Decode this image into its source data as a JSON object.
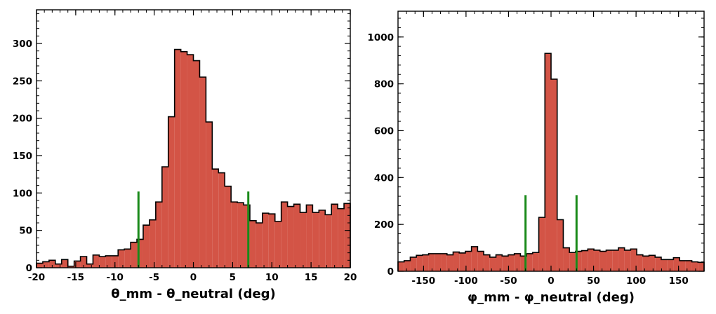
{
  "colors": {
    "bar_fill": "#d35446",
    "bar_edge": "#000000",
    "cut_line": "#1a8a1a",
    "background": "#ffffff"
  },
  "chart_data": [
    {
      "type": "histogram",
      "xlabel": "θ_mm - θ_neutral (deg)",
      "ylabel": "",
      "xlim": [
        -20,
        20
      ],
      "ylim": [
        0,
        345
      ],
      "x_ticks": [
        -20,
        -15,
        -10,
        -5,
        0,
        5,
        10,
        15,
        20
      ],
      "y_ticks": [
        0,
        50,
        100,
        150,
        200,
        250,
        300
      ],
      "grid": false,
      "bin_edges": [
        -20,
        -19.2,
        -18.4,
        -17.6,
        -16.8,
        -16,
        -15.2,
        -14.4,
        -13.6,
        -12.8,
        -12,
        -11.2,
        -10.4,
        -9.6,
        -8.8,
        -8,
        -7.2,
        -6.4,
        -5.6,
        -4.8,
        -4,
        -3.2,
        -2.4,
        -1.6,
        -0.8,
        0,
        0.8,
        1.6,
        2.4,
        3.2,
        4,
        4.8,
        5.6,
        6.4,
        7.2,
        8,
        8.8,
        9.6,
        10.4,
        11.2,
        12,
        12.8,
        13.6,
        14.4,
        15.2,
        16,
        16.8,
        17.6,
        18.4,
        19.2,
        20
      ],
      "counts": [
        6,
        8,
        10,
        5,
        11,
        2,
        9,
        15,
        5,
        17,
        15,
        16,
        16,
        24,
        25,
        34,
        38,
        57,
        64,
        88,
        135,
        202,
        292,
        289,
        285,
        277,
        255,
        195,
        132,
        127,
        109,
        88,
        87,
        84,
        63,
        60,
        73,
        72,
        62,
        88,
        82,
        85,
        74,
        84,
        74,
        77,
        71,
        85,
        79,
        86
      ],
      "cut_lines": [
        -7,
        7
      ],
      "cut_line_height": 102
    },
    {
      "type": "histogram",
      "xlabel": "φ_mm - φ_neutral (deg)",
      "ylabel": "",
      "xlim": [
        -180,
        180
      ],
      "ylim": [
        0,
        1110
      ],
      "x_ticks": [
        -150,
        -100,
        -50,
        0,
        50,
        100,
        150
      ],
      "y_ticks": [
        0,
        200,
        400,
        600,
        800,
        1000
      ],
      "grid": false,
      "bin_edges": [
        -180,
        -172.8,
        -165.6,
        -158.4,
        -151.2,
        -144,
        -136.8,
        -129.6,
        -122.4,
        -115.2,
        -108,
        -100.8,
        -93.6,
        -86.4,
        -79.2,
        -72,
        -64.8,
        -57.6,
        -50.4,
        -43.2,
        -36,
        -28.8,
        -21.6,
        -14.4,
        -7.2,
        0,
        7.2,
        14.4,
        21.6,
        28.8,
        36,
        43.2,
        50.4,
        57.6,
        64.8,
        72,
        79.2,
        86.4,
        93.6,
        100.8,
        108,
        115.2,
        122.4,
        129.6,
        136.8,
        144,
        151.2,
        158.4,
        165.6,
        172.8,
        180
      ],
      "counts": [
        40,
        45,
        60,
        68,
        70,
        75,
        75,
        75,
        70,
        82,
        78,
        85,
        105,
        85,
        70,
        60,
        70,
        65,
        70,
        75,
        65,
        75,
        80,
        230,
        930,
        820,
        220,
        100,
        80,
        85,
        88,
        95,
        90,
        85,
        90,
        90,
        100,
        90,
        95,
        70,
        65,
        68,
        60,
        50,
        50,
        58,
        45,
        45,
        40,
        38
      ],
      "cut_lines": [
        -30,
        30
      ],
      "cut_line_height": 325
    }
  ]
}
